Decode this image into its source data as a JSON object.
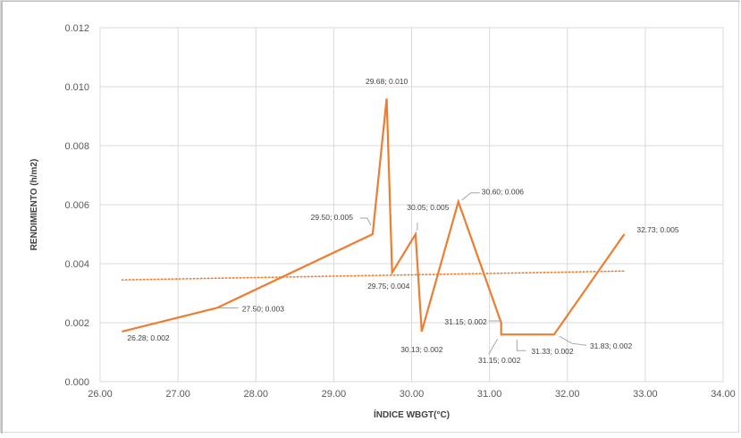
{
  "chart_data": {
    "type": "line",
    "title": "",
    "xlabel": "ÍNDICE WBGT(°C)",
    "ylabel": "RENDIMIENTO  (h/m2)",
    "xlim": [
      26.0,
      34.0
    ],
    "ylim": [
      0.0,
      0.012
    ],
    "grid": true,
    "legend": "none",
    "x_ticks": [
      "26.00",
      "27.00",
      "28.00",
      "29.00",
      "30.00",
      "31.00",
      "32.00",
      "33.00",
      "34.00"
    ],
    "y_ticks": [
      "0.000",
      "0.002",
      "0.004",
      "0.006",
      "0.008",
      "0.010",
      "0.012"
    ],
    "series": [
      {
        "color": "#ed7d31",
        "points": [
          {
            "x": 26.28,
            "y": 0.0017,
            "label": "26.28; 0.002"
          },
          {
            "x": 27.5,
            "y": 0.0025,
            "label": "27.50; 0.003"
          },
          {
            "x": 29.5,
            "y": 0.005,
            "label": "29.50; 0.005"
          },
          {
            "x": 29.68,
            "y": 0.0096,
            "label": "29.68; 0.010"
          },
          {
            "x": 29.75,
            "y": 0.0037,
            "label": "29.75; 0.004"
          },
          {
            "x": 30.05,
            "y": 0.005,
            "label": "30.05; 0.005"
          },
          {
            "x": 30.13,
            "y": 0.0017,
            "label": "30.13; 0.002"
          },
          {
            "x": 30.6,
            "y": 0.0061,
            "label": "30.60; 0.006"
          },
          {
            "x": 31.15,
            "y": 0.002,
            "label": "31.15; 0.002"
          },
          {
            "x": 31.15,
            "y": 0.0016,
            "label": "31.15; 0.002"
          },
          {
            "x": 31.33,
            "y": 0.0016,
            "label": "31.33; 0.002"
          },
          {
            "x": 31.83,
            "y": 0.0016,
            "label": "31.83; 0.002"
          },
          {
            "x": 32.73,
            "y": 0.005,
            "label": "32.73; 0.005"
          }
        ]
      }
    ],
    "trendline": {
      "type": "linear",
      "style": "dotted",
      "color": "#ed7d31",
      "start": {
        "x": 26.28,
        "y": 0.00345
      },
      "end": {
        "x": 32.73,
        "y": 0.00375
      }
    }
  }
}
